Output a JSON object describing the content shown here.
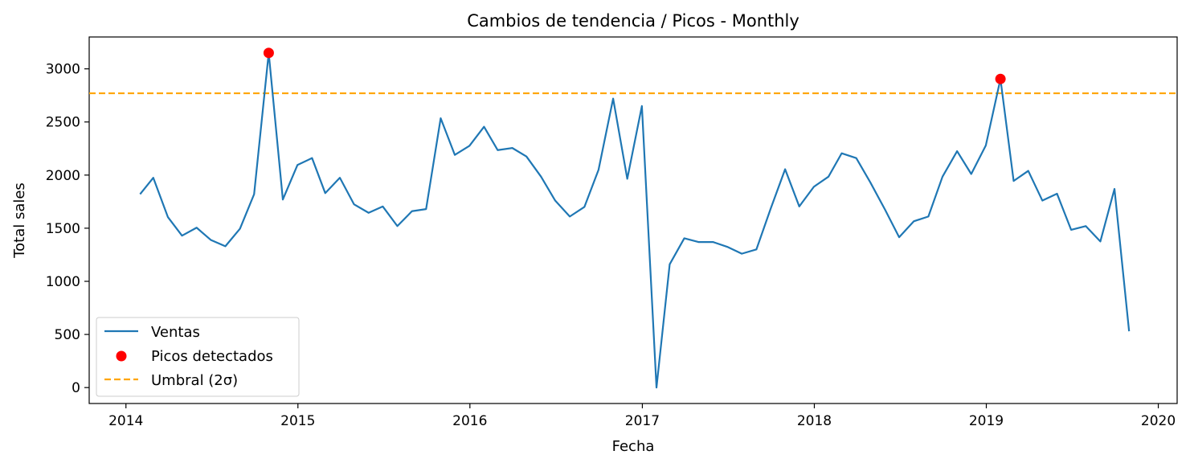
{
  "chart_data": {
    "type": "line",
    "title": "Cambios de tendencia / Picos - Monthly",
    "xlabel": "Fecha",
    "ylabel": "Total sales",
    "xlim": [
      "2013-10-15",
      "2020-02-10"
    ],
    "ylim": [
      -150,
      3300
    ],
    "x_ticks": [
      "2014",
      "2015",
      "2016",
      "2017",
      "2018",
      "2019",
      "2020"
    ],
    "y_ticks": [
      "0",
      "500",
      "1000",
      "1500",
      "2000",
      "2500",
      "3000"
    ],
    "grid": false,
    "legend_position": "lower-left",
    "series": [
      {
        "name": "Ventas",
        "color": "#1f77b4",
        "points": [
          [
            "2014-01-31",
            1820
          ],
          [
            "2014-02-28",
            1975
          ],
          [
            "2014-03-31",
            1605
          ],
          [
            "2014-04-30",
            1430
          ],
          [
            "2014-05-31",
            1505
          ],
          [
            "2014-06-30",
            1390
          ],
          [
            "2014-07-31",
            1330
          ],
          [
            "2014-08-31",
            1495
          ],
          [
            "2014-09-30",
            1820
          ],
          [
            "2014-10-31",
            3150
          ],
          [
            "2014-11-30",
            1770
          ],
          [
            "2014-12-31",
            2095
          ],
          [
            "2015-01-31",
            2160
          ],
          [
            "2015-02-28",
            1830
          ],
          [
            "2015-03-31",
            1975
          ],
          [
            "2015-04-30",
            1725
          ],
          [
            "2015-05-31",
            1645
          ],
          [
            "2015-06-30",
            1705
          ],
          [
            "2015-07-31",
            1520
          ],
          [
            "2015-08-31",
            1660
          ],
          [
            "2015-09-30",
            1680
          ],
          [
            "2015-10-31",
            2535
          ],
          [
            "2015-11-30",
            2190
          ],
          [
            "2015-12-31",
            2275
          ],
          [
            "2016-01-31",
            2455
          ],
          [
            "2016-02-29",
            2235
          ],
          [
            "2016-03-31",
            2255
          ],
          [
            "2016-04-30",
            2175
          ],
          [
            "2016-05-31",
            1985
          ],
          [
            "2016-06-30",
            1760
          ],
          [
            "2016-07-31",
            1610
          ],
          [
            "2016-08-31",
            1700
          ],
          [
            "2016-09-30",
            2050
          ],
          [
            "2016-10-31",
            2720
          ],
          [
            "2016-11-30",
            1965
          ],
          [
            "2016-12-31",
            2650
          ],
          [
            "2017-01-31",
            0
          ],
          [
            "2017-02-28",
            1160
          ],
          [
            "2017-03-31",
            1405
          ],
          [
            "2017-04-30",
            1370
          ],
          [
            "2017-05-31",
            1370
          ],
          [
            "2017-06-30",
            1325
          ],
          [
            "2017-07-31",
            1260
          ],
          [
            "2017-08-31",
            1300
          ],
          [
            "2017-09-30",
            1680
          ],
          [
            "2017-10-31",
            2055
          ],
          [
            "2017-11-30",
            1705
          ],
          [
            "2017-12-31",
            1890
          ],
          [
            "2018-01-31",
            1985
          ],
          [
            "2018-02-28",
            2205
          ],
          [
            "2018-03-31",
            2160
          ],
          [
            "2018-04-30",
            1930
          ],
          [
            "2018-05-31",
            1675
          ],
          [
            "2018-06-30",
            1415
          ],
          [
            "2018-07-31",
            1565
          ],
          [
            "2018-08-31",
            1610
          ],
          [
            "2018-09-30",
            1985
          ],
          [
            "2018-10-31",
            2225
          ],
          [
            "2018-11-30",
            2010
          ],
          [
            "2018-12-31",
            2280
          ],
          [
            "2019-01-31",
            2905
          ],
          [
            "2019-02-28",
            1945
          ],
          [
            "2019-03-31",
            2040
          ],
          [
            "2019-04-30",
            1760
          ],
          [
            "2019-05-31",
            1825
          ],
          [
            "2019-06-30",
            1485
          ],
          [
            "2019-07-31",
            1520
          ],
          [
            "2019-08-31",
            1375
          ],
          [
            "2019-09-30",
            1870
          ],
          [
            "2019-10-31",
            530
          ]
        ]
      }
    ],
    "peaks": {
      "name": "Picos detectados",
      "color": "#ff0000",
      "points": [
        [
          "2014-10-31",
          3150
        ],
        [
          "2019-01-31",
          2905
        ]
      ]
    },
    "threshold": {
      "name": "Umbral (2σ)",
      "color": "#ffa500",
      "value": 2770
    }
  }
}
